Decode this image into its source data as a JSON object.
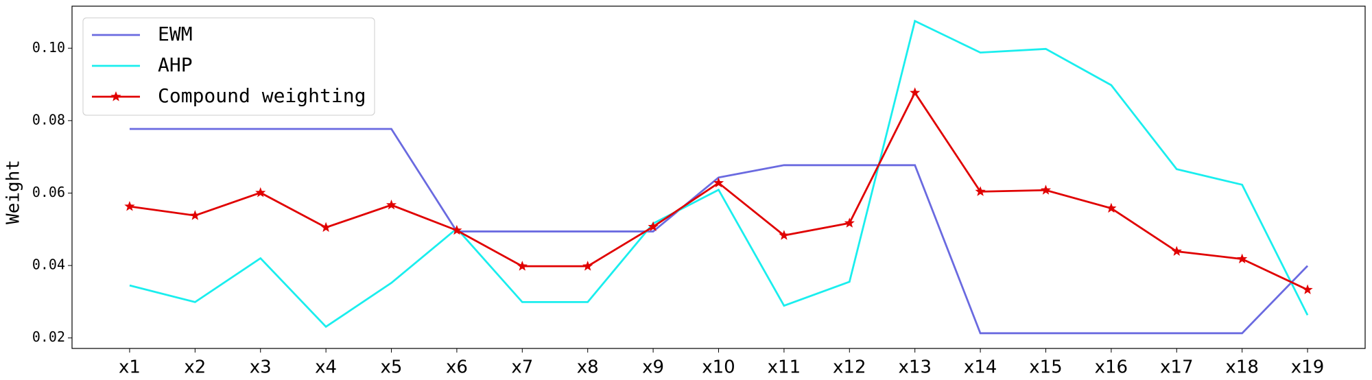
{
  "chart_data": {
    "type": "line",
    "y_label": "Weight",
    "categories": [
      "x1",
      "x2",
      "x3",
      "x4",
      "x5",
      "x6",
      "x7",
      "x8",
      "x9",
      "x10",
      "x11",
      "x12",
      "x13",
      "x14",
      "x15",
      "x16",
      "x17",
      "x18",
      "x19"
    ],
    "series": [
      {
        "name": "EWM",
        "color": "#6a6ae0",
        "values": [
          0.0777,
          0.0777,
          0.0777,
          0.0777,
          0.0777,
          0.0494,
          0.0494,
          0.0494,
          0.0494,
          0.0643,
          0.0677,
          0.0677,
          0.0677,
          0.0213,
          0.0213,
          0.0213,
          0.0213,
          0.0213,
          0.0399
        ]
      },
      {
        "name": "AHP",
        "color": "#1aeeee",
        "values": [
          0.0345,
          0.0299,
          0.042,
          0.0231,
          0.0352,
          0.0502,
          0.0299,
          0.0299,
          0.0516,
          0.0609,
          0.0289,
          0.0355,
          0.1075,
          0.0988,
          0.0998,
          0.0898,
          0.0666,
          0.0623,
          0.0263
        ]
      },
      {
        "name": "Compound weighting",
        "color": "#e00000",
        "marker": "star",
        "values": [
          0.0563,
          0.0538,
          0.0601,
          0.0505,
          0.0567,
          0.0497,
          0.0398,
          0.0398,
          0.0507,
          0.0628,
          0.0483,
          0.0517,
          0.0877,
          0.0604,
          0.0608,
          0.0558,
          0.0439,
          0.0418,
          0.0333
        ]
      }
    ],
    "ylim": [
      0.0171,
      0.1116
    ],
    "yticks": [
      0.02,
      0.04,
      0.06,
      0.08,
      {
        "value": 0.1,
        "label": "0.10"
      }
    ],
    "legend": "upper left"
  }
}
